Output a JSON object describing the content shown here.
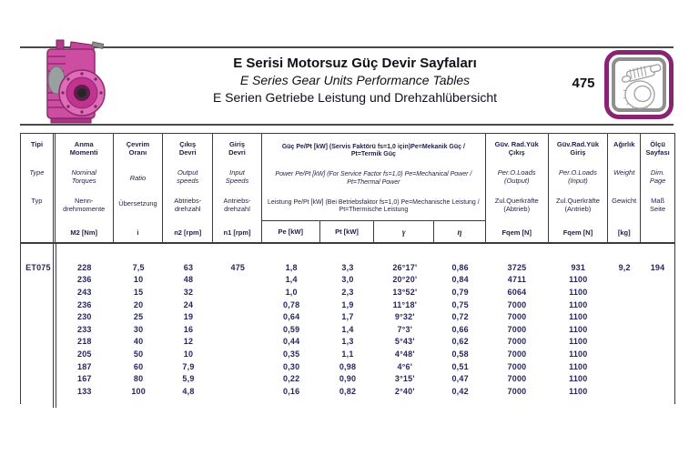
{
  "header": {
    "title_tr": "E Serisi Motorsuz Güç Devir Sayfaları",
    "title_en": "E Series Gear Units Performance Tables",
    "title_de": "E Serien Getriebe Leistung und Drehzahlübersicht",
    "page_number": "475"
  },
  "icons": {
    "corner_badge": "worm-gear-icon",
    "header_photo": "gearbox-photo"
  },
  "colors": {
    "gearbox_pink": "#cc4da2",
    "badge_purple": "#8b2374",
    "border_gray": "#3c3c3c",
    "text_navy": "#26265e"
  },
  "table": {
    "cols": [
      {
        "tr": "Tipi",
        "en": "Type",
        "de": "Typ",
        "unit": ""
      },
      {
        "tr": "Anma\nMomenti",
        "en": "Nominal\nTorques",
        "de": "Nenn-\ndrehmomente",
        "unit": "M2 [Nm]"
      },
      {
        "tr": "Çevrim\nOranı",
        "en": "Ratio",
        "de": "Übersetzung",
        "unit": "i"
      },
      {
        "tr": "Çıkış\nDevri",
        "en": "Output\nspeeds",
        "de": "Abtriebs-\ndrehzahl",
        "unit": "n2 [rpm]"
      },
      {
        "tr": "Giriş\nDevri",
        "en": "Input\nSpeeds",
        "de": "Antriebs-\ndrehzahl",
        "unit": "n1 [rpm]"
      },
      {
        "tr": "Güv. Rad.Yük\nÇıkış",
        "en": "Per.O.Loads\n(Output)",
        "de": "Zul.Querkräfte\n(Abtrieb)",
        "unit": "Fqem [N]"
      },
      {
        "tr": "Güv.Rad.Yük\nGiriş",
        "en": "Per.O.Loads\n(Input)",
        "de": "Zul.Querkräfte\n(Antrieb)",
        "unit": "Fqem [N]"
      },
      {
        "tr": "Ağırlık",
        "en": "Weight",
        "de": "Gewicht",
        "unit": "[kg]"
      },
      {
        "tr": "Ölçü\nSayfası",
        "en": "Dim.\nPage",
        "de": "Maß\nSeite",
        "unit": ""
      }
    ],
    "power": {
      "tr": "Güç Pe/Pt [kW] (Servis Faktörü fs=1,0 için)Pe=Mekanik Güç / Pt=Termik Güç",
      "en": "Power Pe/Pt [kW] (For Service Factor fs=1,0) Pe=Mechanical Power / Pt=Thermal Power",
      "de": "Leistung Pe/Pt [kW] (Bei Betriebsfaktor fs=1,0) Pe=Mechanische Leistung / Pt=Thermische Leistung",
      "units": [
        "Pe [kW]",
        "Pt [kW]",
        "γ",
        "η"
      ]
    },
    "rows": [
      [
        "ET075",
        "228",
        "7,5",
        "63",
        "475",
        "1,8",
        "3,3",
        "26°17'",
        "0,86",
        "3725",
        "931",
        "9,2",
        "194"
      ],
      [
        "",
        "236",
        "10",
        "48",
        "",
        "1,4",
        "3,0",
        "20°20'",
        "0,84",
        "4711",
        "1100",
        "",
        ""
      ],
      [
        "",
        "243",
        "15",
        "32",
        "",
        "1,0",
        "2,3",
        "13°52'",
        "0,79",
        "6064",
        "1100",
        "",
        ""
      ],
      [
        "",
        "236",
        "20",
        "24",
        "",
        "0,78",
        "1,9",
        "11°18'",
        "0,75",
        "7000",
        "1100",
        "",
        ""
      ],
      [
        "",
        "230",
        "25",
        "19",
        "",
        "0,64",
        "1,7",
        "9°32'",
        "0,72",
        "7000",
        "1100",
        "",
        ""
      ],
      [
        "",
        "233",
        "30",
        "16",
        "",
        "0,59",
        "1,4",
        "7°3'",
        "0,66",
        "7000",
        "1100",
        "",
        ""
      ],
      [
        "",
        "218",
        "40",
        "12",
        "",
        "0,44",
        "1,3",
        "5°43'",
        "0,62",
        "7000",
        "1100",
        "",
        ""
      ],
      [
        "",
        "205",
        "50",
        "10",
        "",
        "0,35",
        "1,1",
        "4°48'",
        "0,58",
        "7000",
        "1100",
        "",
        ""
      ],
      [
        "",
        "187",
        "60",
        "7,9",
        "",
        "0,30",
        "0,98",
        "4°6'",
        "0,51",
        "7000",
        "1100",
        "",
        ""
      ],
      [
        "",
        "167",
        "80",
        "5,9",
        "",
        "0,22",
        "0,90",
        "3°15'",
        "0,47",
        "7000",
        "1100",
        "",
        ""
      ],
      [
        "",
        "133",
        "100",
        "4,8",
        "",
        "0,16",
        "0,82",
        "2°40'",
        "0,42",
        "7000",
        "1100",
        "",
        ""
      ]
    ]
  }
}
